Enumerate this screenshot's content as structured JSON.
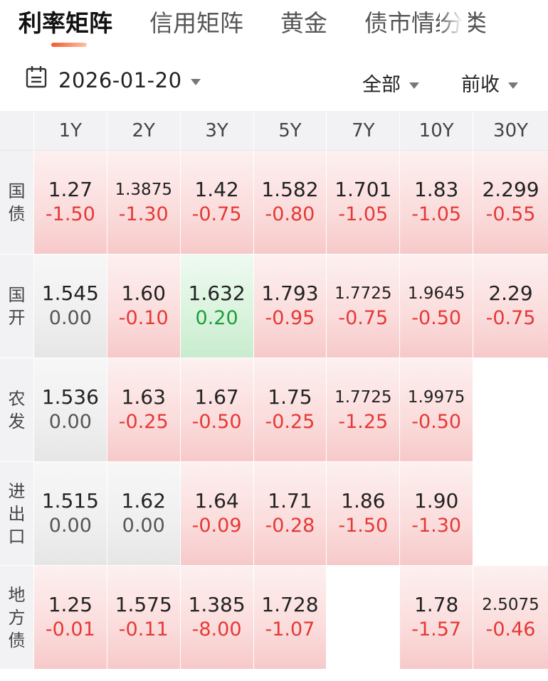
{
  "tabs": [
    "利率矩阵",
    "信用矩阵",
    "黄金",
    "债市情绪",
    "分类"
  ],
  "filter": {
    "date": "2026-01-20",
    "scope": "全部",
    "price_type": "前收"
  },
  "columns": [
    "1Y",
    "2Y",
    "3Y",
    "5Y",
    "7Y",
    "10Y",
    "30Y"
  ],
  "rows": [
    {
      "label": [
        "国",
        "债"
      ],
      "cells": [
        {
          "v": "1.27",
          "c": "-1.50",
          "t": "down"
        },
        {
          "v": "1.3875",
          "c": "-1.30",
          "t": "down"
        },
        {
          "v": "1.42",
          "c": "-0.75",
          "t": "down"
        },
        {
          "v": "1.582",
          "c": "-0.80",
          "t": "down"
        },
        {
          "v": "1.701",
          "c": "-1.05",
          "t": "down"
        },
        {
          "v": "1.83",
          "c": "-1.05",
          "t": "down"
        },
        {
          "v": "2.299",
          "c": "-0.55",
          "t": "down"
        }
      ]
    },
    {
      "label": [
        "国",
        "开"
      ],
      "cells": [
        {
          "v": "1.545",
          "c": "0.00",
          "t": "flat"
        },
        {
          "v": "1.60",
          "c": "-0.10",
          "t": "down"
        },
        {
          "v": "1.632",
          "c": "0.20",
          "t": "up"
        },
        {
          "v": "1.793",
          "c": "-0.95",
          "t": "down"
        },
        {
          "v": "1.7725",
          "c": "-0.75",
          "t": "down"
        },
        {
          "v": "1.9645",
          "c": "-0.50",
          "t": "down"
        },
        {
          "v": "2.29",
          "c": "-0.75",
          "t": "down"
        }
      ]
    },
    {
      "label": [
        "农",
        "发"
      ],
      "cells": [
        {
          "v": "1.536",
          "c": "0.00",
          "t": "flat"
        },
        {
          "v": "1.63",
          "c": "-0.25",
          "t": "down"
        },
        {
          "v": "1.67",
          "c": "-0.50",
          "t": "down"
        },
        {
          "v": "1.75",
          "c": "-0.25",
          "t": "down"
        },
        {
          "v": "1.7725",
          "c": "-1.25",
          "t": "down"
        },
        {
          "v": "1.9975",
          "c": "-0.50",
          "t": "down"
        },
        {
          "v": "",
          "c": "",
          "t": "empty"
        }
      ]
    },
    {
      "label": [
        "进",
        "出",
        "口"
      ],
      "cells": [
        {
          "v": "1.515",
          "c": "0.00",
          "t": "flat"
        },
        {
          "v": "1.62",
          "c": "0.00",
          "t": "flat"
        },
        {
          "v": "1.64",
          "c": "-0.09",
          "t": "down"
        },
        {
          "v": "1.71",
          "c": "-0.28",
          "t": "down"
        },
        {
          "v": "1.86",
          "c": "-1.50",
          "t": "down"
        },
        {
          "v": "1.90",
          "c": "-1.30",
          "t": "down"
        },
        {
          "v": "",
          "c": "",
          "t": "empty"
        }
      ]
    },
    {
      "label": [
        "地",
        "方",
        "债"
      ],
      "cells": [
        {
          "v": "1.25",
          "c": "-0.01",
          "t": "down"
        },
        {
          "v": "1.575",
          "c": "-0.11",
          "t": "down"
        },
        {
          "v": "1.385",
          "c": "-8.00",
          "t": "down"
        },
        {
          "v": "1.728",
          "c": "-1.07",
          "t": "down"
        },
        {
          "v": "",
          "c": "",
          "t": "empty"
        },
        {
          "v": "1.78",
          "c": "-1.57",
          "t": "down"
        },
        {
          "v": "2.5075",
          "c": "-0.46",
          "t": "down"
        }
      ]
    }
  ]
}
